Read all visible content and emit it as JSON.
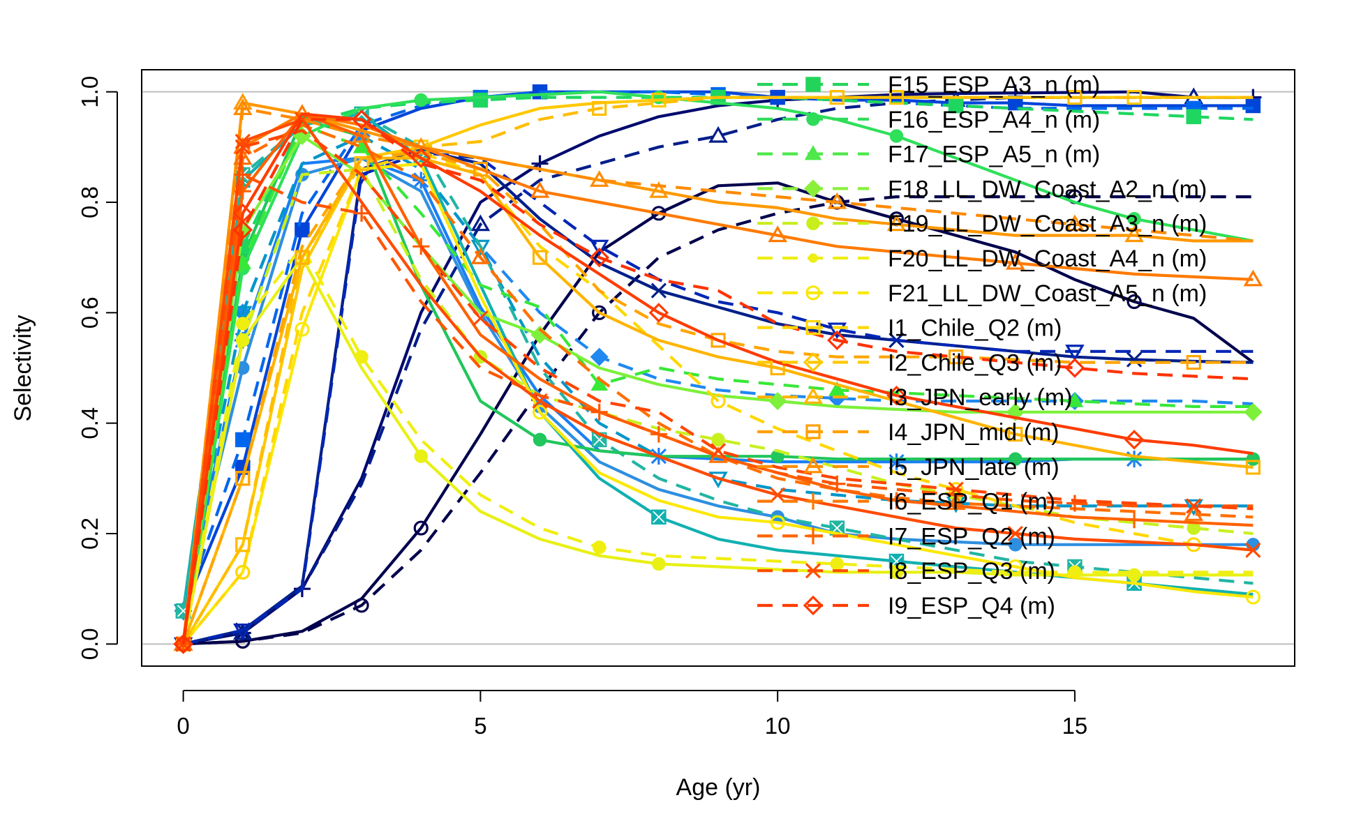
{
  "chart_data": {
    "type": "line",
    "title": "",
    "xlabel": "Age (yr)",
    "ylabel": "Selectivity",
    "xlim": [
      -0.7,
      18.7
    ],
    "ylim": [
      -0.04,
      1.04
    ],
    "xticks": [
      "0",
      "5",
      "10",
      "15"
    ],
    "yticks": [
      "0.0",
      "0.2",
      "0.4",
      "0.6",
      "0.8",
      "1.0"
    ],
    "reference_lines_y": [
      0,
      1
    ],
    "grid": false,
    "legend_position": "top-right",
    "x": [
      0,
      1,
      2,
      3,
      4,
      5,
      6,
      7,
      8,
      9,
      10,
      11,
      12,
      13,
      14,
      15,
      16,
      17,
      18
    ],
    "legend_entries": [
      "F15_ESP_A3_n (m)",
      "F16_ESP_A4_n (m)",
      "F17_ESP_A5_n (m)",
      "F18_LL_DW_Coast_A2_n (m)",
      "F19_LL_DW_Coast_A3_n (m)",
      "F20_LL_DW_Coast_A4_n (m)",
      "F21_LL_DW_Coast_A5_n (m)",
      "I1_Chile_Q2 (m)",
      "I2_Chile_Q3 (m)",
      "I3_JPN_early (m)",
      "I4_JPN_mid (m)",
      "I5_JPN_late (m)",
      "I6_ESP_Q1 (m)",
      "I7_ESP_Q2 (m)",
      "I8_ESP_Q3 (m)",
      "I9_ESP_Q4 (m)"
    ],
    "series": [
      {
        "color": "#00004d",
        "dash": "solid",
        "marker": "circle",
        "values": [
          0,
          0.005,
          0.023,
          0.082,
          0.21,
          0.38,
          0.56,
          0.71,
          0.78,
          0.83,
          0.835,
          0.8,
          0.77,
          0.74,
          0.71,
          0.66,
          0.62,
          0.59,
          0.51
        ]
      },
      {
        "color": "#00004d",
        "dash": "dash",
        "marker": "circle",
        "values": [
          0,
          0.005,
          0.02,
          0.07,
          0.17,
          0.31,
          0.46,
          0.6,
          0.7,
          0.75,
          0.78,
          0.8,
          0.81,
          0.81,
          0.81,
          0.81,
          0.81,
          0.81,
          0.81
        ]
      },
      {
        "color": "#000a6e",
        "dash": "solid",
        "marker": "plus",
        "values": [
          0,
          0.02,
          0.1,
          0.3,
          0.6,
          0.8,
          0.87,
          0.92,
          0.955,
          0.975,
          0.985,
          0.99,
          0.995,
          0.997,
          0.998,
          0.999,
          1.0,
          0.99,
          0.99
        ]
      },
      {
        "color": "#001d8a",
        "dash": "dash",
        "marker": "triangle",
        "values": [
          0,
          0.02,
          0.1,
          0.29,
          0.57,
          0.76,
          0.84,
          0.87,
          0.9,
          0.92,
          0.95,
          0.97,
          0.98,
          0.985,
          0.99,
          0.99,
          0.99,
          0.99,
          0.99
        ]
      },
      {
        "color": "#001f8a",
        "dash": "solid",
        "marker": "x",
        "values": [
          0,
          0.025,
          0.105,
          0.86,
          0.895,
          0.87,
          0.77,
          0.69,
          0.64,
          0.61,
          0.58,
          0.56,
          0.55,
          0.54,
          0.53,
          0.52,
          0.515,
          0.512,
          0.51
        ]
      },
      {
        "color": "#0026b5",
        "dash": "dash",
        "marker": "triangle-down",
        "values": [
          0,
          0.025,
          0.1,
          0.85,
          0.89,
          0.88,
          0.8,
          0.72,
          0.66,
          0.62,
          0.6,
          0.57,
          0.55,
          0.54,
          0.53,
          0.53,
          0.53,
          0.53,
          0.53
        ]
      },
      {
        "color": "#0044d8",
        "dash": "solid",
        "marker": "square",
        "values": [
          0.06,
          0.32,
          0.75,
          0.93,
          0.97,
          0.99,
          1.0,
          1.0,
          1.0,
          1.0,
          0.99,
          0.985,
          0.985,
          0.98,
          0.98,
          0.975,
          0.975,
          0.975,
          0.975
        ]
      },
      {
        "color": "#0066ee",
        "dash": "dash",
        "marker": "square",
        "values": [
          0.06,
          0.37,
          0.78,
          0.94,
          0.975,
          0.99,
          1.0,
          1.0,
          1.0,
          0.995,
          0.99,
          0.985,
          0.98,
          0.975,
          0.97,
          0.97,
          0.97,
          0.97,
          0.97
        ]
      },
      {
        "color": "#1a7ff5",
        "dash": "solid",
        "marker": "asterisk",
        "values": [
          0.06,
          0.55,
          0.87,
          0.88,
          0.84,
          0.61,
          0.45,
          0.35,
          0.34,
          0.335,
          0.33,
          0.33,
          0.33,
          0.33,
          0.33,
          0.335,
          0.335,
          0.335,
          0.335
        ]
      },
      {
        "color": "#2088f0",
        "dash": "dash",
        "marker": "diamond",
        "values": [
          0.06,
          0.6,
          0.87,
          0.92,
          0.86,
          0.72,
          0.6,
          0.52,
          0.48,
          0.46,
          0.45,
          0.445,
          0.44,
          0.44,
          0.44,
          0.44,
          0.44,
          0.44,
          0.435
        ]
      },
      {
        "color": "#2e8fe0",
        "dash": "solid",
        "marker": "circle-filled",
        "values": [
          0.06,
          0.5,
          0.85,
          0.88,
          0.82,
          0.6,
          0.43,
          0.33,
          0.28,
          0.25,
          0.23,
          0.2,
          0.19,
          0.185,
          0.18,
          0.18,
          0.18,
          0.18,
          0.18
        ]
      },
      {
        "color": "#0096c8",
        "dash": "dash",
        "marker": "triangle-down",
        "values": [
          0.06,
          0.6,
          0.87,
          0.92,
          0.86,
          0.72,
          0.52,
          0.4,
          0.34,
          0.3,
          0.28,
          0.27,
          0.26,
          0.255,
          0.25,
          0.25,
          0.25,
          0.25,
          0.25
        ]
      },
      {
        "color": "#11b0b0",
        "dash": "solid",
        "marker": "x-square",
        "values": [
          0.06,
          0.84,
          0.94,
          0.96,
          0.88,
          0.65,
          0.42,
          0.3,
          0.23,
          0.19,
          0.17,
          0.16,
          0.15,
          0.14,
          0.13,
          0.12,
          0.11,
          0.1,
          0.09
        ]
      },
      {
        "color": "#22b5a3",
        "dash": "dash",
        "marker": "x-square",
        "values": [
          0.06,
          0.85,
          0.94,
          0.96,
          0.9,
          0.72,
          0.5,
          0.37,
          0.3,
          0.26,
          0.23,
          0.21,
          0.19,
          0.17,
          0.15,
          0.14,
          0.13,
          0.12,
          0.11
        ]
      },
      {
        "color": "#21c65c",
        "dash": "solid",
        "marker": "circle-filled",
        "values": [
          0,
          0.7,
          0.95,
          0.92,
          0.65,
          0.44,
          0.37,
          0.35,
          0.34,
          0.34,
          0.34,
          0.335,
          0.335,
          0.335,
          0.335,
          0.335,
          0.335,
          0.335,
          0.335
        ]
      },
      {
        "color": "#1fd660",
        "dash": "dash",
        "marker": "square-filled",
        "values": [
          0,
          0.72,
          0.94,
          0.97,
          0.98,
          0.985,
          0.99,
          0.99,
          0.99,
          0.99,
          0.99,
          0.985,
          0.98,
          0.975,
          0.97,
          0.965,
          0.96,
          0.955,
          0.95
        ]
      },
      {
        "color": "#2ee05a",
        "dash": "solid",
        "marker": "circle-filled",
        "values": [
          0,
          0.68,
          0.92,
          0.97,
          0.985,
          0.99,
          0.995,
          1.0,
          0.99,
          0.98,
          0.97,
          0.95,
          0.92,
          0.88,
          0.84,
          0.8,
          0.77,
          0.75,
          0.73
        ]
      },
      {
        "color": "#38e838",
        "dash": "dash",
        "marker": "triangle-filled",
        "values": [
          0,
          0.69,
          0.94,
          0.9,
          0.78,
          0.65,
          0.61,
          0.47,
          0.5,
          0.48,
          0.47,
          0.46,
          0.455,
          0.45,
          0.445,
          0.44,
          0.435,
          0.43,
          0.43
        ]
      },
      {
        "color": "#7cf03a",
        "dash": "solid",
        "marker": "diamond-filled",
        "values": [
          0,
          0.75,
          0.92,
          0.85,
          0.72,
          0.6,
          0.56,
          0.5,
          0.47,
          0.45,
          0.44,
          0.43,
          0.425,
          0.42,
          0.42,
          0.42,
          0.42,
          0.42,
          0.42
        ]
      },
      {
        "color": "#c8f020",
        "dash": "dash",
        "marker": "circle-filled",
        "values": [
          0,
          0.55,
          0.85,
          0.86,
          0.66,
          0.52,
          0.45,
          0.42,
          0.39,
          0.37,
          0.35,
          0.32,
          0.29,
          0.27,
          0.25,
          0.23,
          0.22,
          0.21,
          0.2
        ]
      },
      {
        "color": "#e8f014",
        "dash": "solid",
        "marker": "circle-filled",
        "values": [
          0,
          0.55,
          0.7,
          0.5,
          0.34,
          0.24,
          0.19,
          0.16,
          0.145,
          0.14,
          0.135,
          0.13,
          0.13,
          0.13,
          0.125,
          0.125,
          0.125,
          0.125,
          0.125
        ]
      },
      {
        "color": "#f0ee10",
        "dash": "dash",
        "marker": "circle-filled",
        "values": [
          0,
          0.58,
          0.72,
          0.52,
          0.37,
          0.27,
          0.21,
          0.175,
          0.16,
          0.155,
          0.15,
          0.145,
          0.14,
          0.135,
          0.13,
          0.13,
          0.13,
          0.13,
          0.13
        ]
      },
      {
        "color": "#fbe806",
        "dash": "solid",
        "marker": "circle-open",
        "values": [
          0,
          0.13,
          0.57,
          0.86,
          0.87,
          0.63,
          0.42,
          0.31,
          0.26,
          0.23,
          0.22,
          0.2,
          0.18,
          0.16,
          0.14,
          0.12,
          0.11,
          0.095,
          0.085
        ]
      },
      {
        "color": "#ffd700",
        "dash": "dash",
        "marker": "circle-open",
        "values": [
          0,
          0.13,
          0.6,
          0.86,
          0.89,
          0.85,
          0.72,
          0.64,
          0.54,
          0.44,
          0.39,
          0.35,
          0.31,
          0.28,
          0.25,
          0.22,
          0.2,
          0.18,
          0.17
        ]
      },
      {
        "color": "#ffc800",
        "dash": "solid",
        "marker": "square-open",
        "values": [
          0,
          0.18,
          0.68,
          0.88,
          0.9,
          0.94,
          0.97,
          0.98,
          0.985,
          0.99,
          0.99,
          0.99,
          0.99,
          0.99,
          0.99,
          0.99,
          0.99,
          0.99,
          0.99
        ]
      },
      {
        "color": "#ffbd00",
        "dash": "dash",
        "marker": "square-open",
        "values": [
          0,
          0.18,
          0.7,
          0.87,
          0.9,
          0.91,
          0.95,
          0.97,
          0.98,
          0.99,
          0.99,
          0.99,
          0.99,
          0.99,
          0.99,
          0.99,
          0.99,
          0.99,
          0.99
        ]
      },
      {
        "color": "#ffb400",
        "dash": "solid",
        "marker": "square-open",
        "values": [
          0,
          0.3,
          0.7,
          0.88,
          0.88,
          0.85,
          0.7,
          0.6,
          0.55,
          0.52,
          0.5,
          0.47,
          0.44,
          0.41,
          0.38,
          0.36,
          0.34,
          0.33,
          0.32
        ]
      },
      {
        "color": "#ffa500",
        "dash": "dash",
        "marker": "square-open",
        "values": [
          0,
          0.3,
          0.72,
          0.88,
          0.89,
          0.86,
          0.76,
          0.64,
          0.58,
          0.55,
          0.53,
          0.52,
          0.52,
          0.52,
          0.515,
          0.51,
          0.51,
          0.51,
          0.51
        ]
      },
      {
        "color": "#ff9800",
        "dash": "solid",
        "marker": "triangle-open",
        "values": [
          0,
          0.98,
          0.96,
          0.93,
          0.9,
          0.88,
          0.86,
          0.84,
          0.82,
          0.8,
          0.79,
          0.77,
          0.76,
          0.75,
          0.74,
          0.74,
          0.74,
          0.73,
          0.73
        ]
      },
      {
        "color": "#ff8a00",
        "dash": "dash",
        "marker": "triangle-open",
        "values": [
          0,
          0.97,
          0.95,
          0.92,
          0.9,
          0.88,
          0.86,
          0.84,
          0.83,
          0.82,
          0.81,
          0.8,
          0.79,
          0.78,
          0.77,
          0.76,
          0.75,
          0.74,
          0.73
        ]
      },
      {
        "color": "#ff7a00",
        "dash": "solid",
        "marker": "triangle-open",
        "values": [
          0,
          0.9,
          0.96,
          0.94,
          0.9,
          0.86,
          0.82,
          0.8,
          0.78,
          0.76,
          0.74,
          0.72,
          0.71,
          0.7,
          0.69,
          0.68,
          0.67,
          0.665,
          0.66
        ]
      },
      {
        "color": "#ff7000",
        "dash": "dash",
        "marker": "triangle-open",
        "values": [
          0,
          0.88,
          0.94,
          0.9,
          0.84,
          0.7,
          0.57,
          0.48,
          0.4,
          0.34,
          0.3,
          0.28,
          0.265,
          0.255,
          0.25,
          0.245,
          0.24,
          0.235,
          0.23
        ]
      },
      {
        "color": "#ff6200",
        "dash": "solid",
        "marker": "plus",
        "values": [
          0,
          0.82,
          0.96,
          0.92,
          0.72,
          0.56,
          0.48,
          0.42,
          0.38,
          0.34,
          0.31,
          0.28,
          0.26,
          0.25,
          0.24,
          0.23,
          0.225,
          0.22,
          0.215
        ]
      },
      {
        "color": "#ff5500",
        "dash": "dash",
        "marker": "plus",
        "values": [
          0,
          0.85,
          0.8,
          0.78,
          0.62,
          0.5,
          0.45,
          0.42,
          0.38,
          0.34,
          0.31,
          0.29,
          0.28,
          0.27,
          0.26,
          0.255,
          0.25,
          0.25,
          0.25
        ]
      },
      {
        "color": "#ff4b00",
        "dash": "solid",
        "marker": "x",
        "values": [
          0,
          0.91,
          0.95,
          0.8,
          0.65,
          0.52,
          0.44,
          0.38,
          0.34,
          0.3,
          0.27,
          0.25,
          0.23,
          0.21,
          0.2,
          0.19,
          0.185,
          0.18,
          0.17
        ]
      },
      {
        "color": "#ff4500",
        "dash": "dash",
        "marker": "x",
        "values": [
          0,
          0.9,
          0.93,
          0.85,
          0.72,
          0.59,
          0.5,
          0.44,
          0.42,
          0.35,
          0.32,
          0.3,
          0.29,
          0.28,
          0.27,
          0.26,
          0.255,
          0.25,
          0.245
        ]
      },
      {
        "color": "#ff3c00",
        "dash": "solid",
        "marker": "diamond-open",
        "values": [
          0,
          0.78,
          0.96,
          0.95,
          0.88,
          0.82,
          0.74,
          0.67,
          0.6,
          0.55,
          0.51,
          0.48,
          0.45,
          0.43,
          0.41,
          0.39,
          0.37,
          0.36,
          0.345
        ]
      },
      {
        "color": "#ff3300",
        "dash": "dash",
        "marker": "diamond-open",
        "values": [
          0,
          0.75,
          0.95,
          0.95,
          0.87,
          0.84,
          0.76,
          0.7,
          0.66,
          0.64,
          0.58,
          0.55,
          0.53,
          0.52,
          0.51,
          0.5,
          0.49,
          0.485,
          0.48
        ]
      }
    ],
    "legend": [
      {
        "color": "#23d45a",
        "dash": "dash",
        "marker": "square-filled"
      },
      {
        "color": "#2fdc5a",
        "dash": "dash",
        "marker": "circle-filled"
      },
      {
        "color": "#4ee84a",
        "dash": "dash",
        "marker": "triangle-filled"
      },
      {
        "color": "#8af03a",
        "dash": "dash",
        "marker": "diamond-filled"
      },
      {
        "color": "#c8ee1c",
        "dash": "dash",
        "marker": "circle-filled"
      },
      {
        "color": "#eeee14",
        "dash": "dash",
        "marker": "circle-filled-small"
      },
      {
        "color": "#f8e80a",
        "dash": "dash",
        "marker": "circle-open"
      },
      {
        "color": "#ffd700",
        "dash": "dash",
        "marker": "square-open"
      },
      {
        "color": "#ffc800",
        "dash": "dash",
        "marker": "diamond-open"
      },
      {
        "color": "#ffb400",
        "dash": "dash",
        "marker": "triangle-open"
      },
      {
        "color": "#ffa000",
        "dash": "dash",
        "marker": "square-open"
      },
      {
        "color": "#ff9000",
        "dash": "dash",
        "marker": "triangle-open"
      },
      {
        "color": "#ff7800",
        "dash": "dash",
        "marker": "plus"
      },
      {
        "color": "#ff6400",
        "dash": "dash",
        "marker": "plus"
      },
      {
        "color": "#ff4e00",
        "dash": "dash",
        "marker": "x"
      },
      {
        "color": "#ff3c00",
        "dash": "dash",
        "marker": "diamond-open"
      }
    ]
  }
}
